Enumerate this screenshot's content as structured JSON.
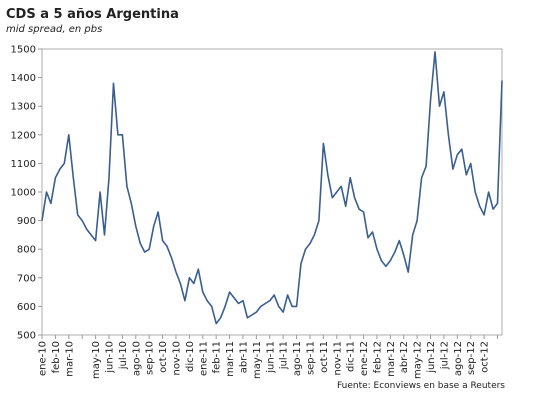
{
  "chart_data": {
    "type": "line",
    "title": "CDS a 5 años Argentina",
    "subtitle": "mid spread, en pbs",
    "source": "Fuente: Econviews en base a Reuters",
    "categories": [
      "ene-10",
      null,
      null,
      "feb-10",
      null,
      null,
      "mar-10",
      null,
      null,
      null,
      null,
      null,
      "may-10",
      null,
      null,
      "jun-10",
      null,
      null,
      "jul-10",
      null,
      null,
      "ago-10",
      null,
      null,
      "sep-10",
      null,
      null,
      "oct-10",
      null,
      null,
      "nov-10",
      null,
      null,
      "dic-10",
      null,
      null,
      "ene-11",
      null,
      null,
      "feb-11",
      null,
      null,
      "mar-11",
      null,
      null,
      "abr-11",
      null,
      null,
      "may-11",
      null,
      null,
      "jun-11",
      null,
      null,
      "jul-11",
      null,
      null,
      "ago-11",
      null,
      null,
      "sep-11",
      null,
      null,
      "oct-11",
      null,
      null,
      "nov-11",
      null,
      null,
      "dic-11",
      null,
      null,
      "ene-12",
      null,
      null,
      "feb-12",
      null,
      null,
      "mar-12",
      null,
      null,
      "abr-12",
      null,
      null,
      "may-12",
      null,
      null,
      "jun-12",
      null,
      null,
      "jul-12",
      null,
      null,
      "ago-12",
      null,
      null,
      "sep-12",
      null,
      null,
      "oct-12",
      null,
      null,
      null,
      null
    ],
    "series": [
      {
        "name": "CDS",
        "color": "#3a5f8f",
        "values": [
          900,
          1000,
          960,
          1050,
          1080,
          1100,
          1200,
          1050,
          920,
          900,
          870,
          850,
          830,
          1000,
          850,
          1050,
          1380,
          1200,
          1200,
          1020,
          960,
          880,
          820,
          790,
          800,
          880,
          930,
          830,
          810,
          770,
          720,
          680,
          620,
          700,
          680,
          730,
          650,
          620,
          600,
          540,
          560,
          600,
          650,
          630,
          610,
          620,
          560,
          570,
          580,
          600,
          610,
          620,
          640,
          600,
          580,
          640,
          600,
          600,
          750,
          800,
          820,
          850,
          900,
          1170,
          1060,
          980,
          1000,
          1020,
          950,
          1050,
          980,
          940,
          930,
          840,
          860,
          800,
          760,
          740,
          760,
          790,
          830,
          780,
          720,
          850,
          900,
          1050,
          1090,
          1320,
          1490,
          1300,
          1350,
          1200,
          1080,
          1130,
          1150,
          1060,
          1100,
          1000,
          950,
          920,
          1000,
          940,
          960,
          1390
        ]
      }
    ],
    "ylim": [
      500,
      1500
    ],
    "yticks": [
      500,
      600,
      700,
      800,
      900,
      1000,
      1100,
      1200,
      1300,
      1400,
      1500
    ]
  }
}
